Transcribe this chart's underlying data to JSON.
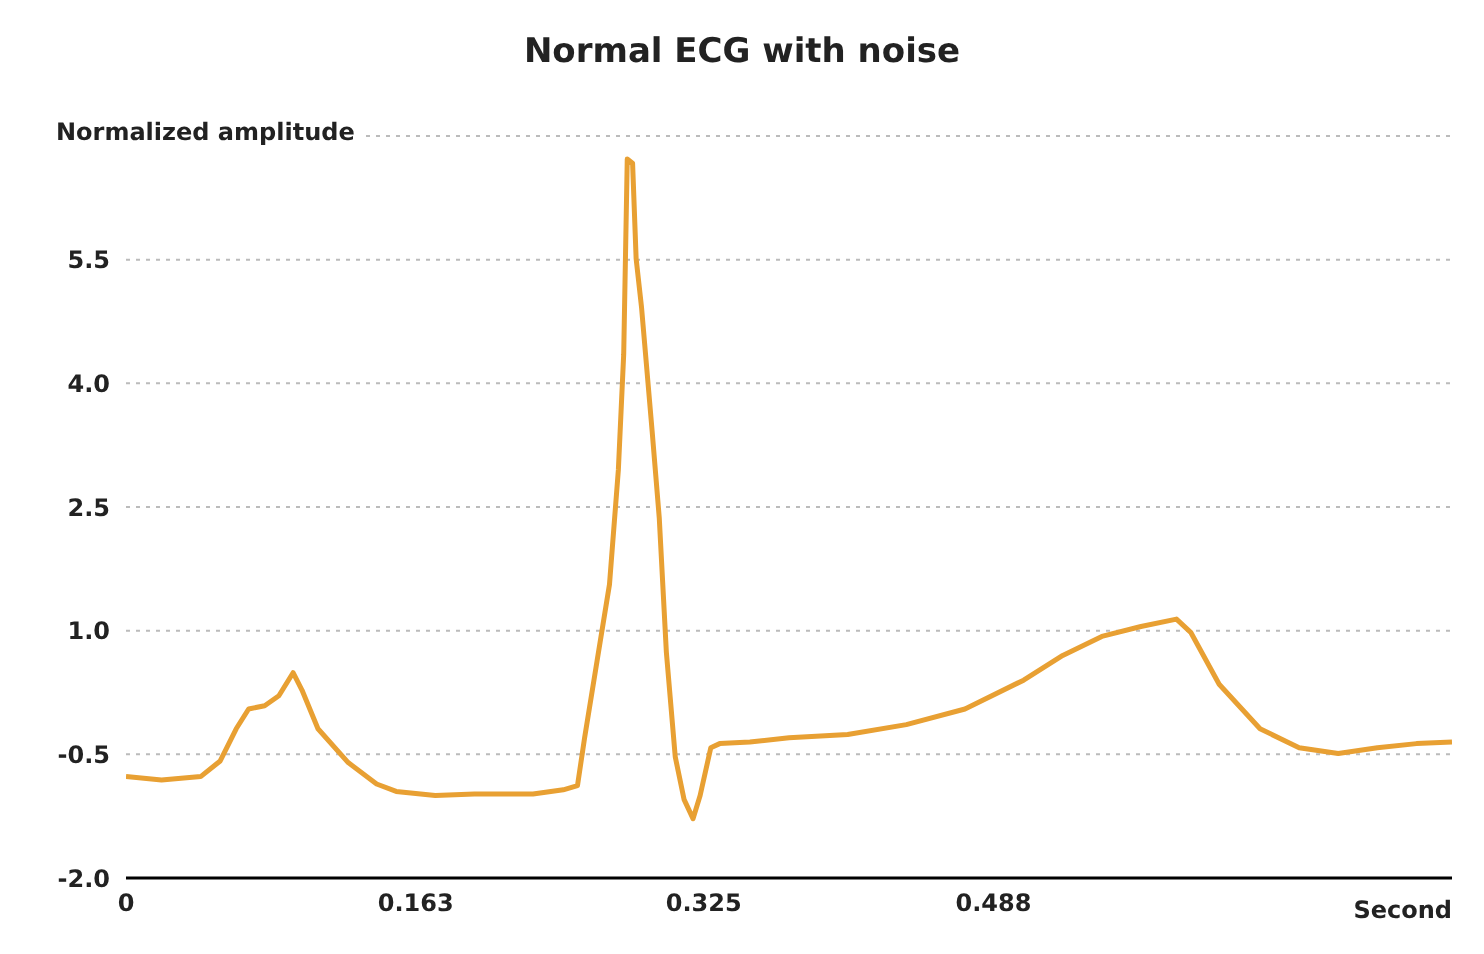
{
  "chart_data": {
    "type": "line",
    "title": "Normal ECG with noise",
    "xlabel": "Second",
    "ylabel": "Normalized amplitude",
    "x": [
      0,
      0.02,
      0.042,
      0.053,
      0.062,
      0.069,
      0.078,
      0.086,
      0.094,
      0.099,
      0.108,
      0.125,
      0.141,
      0.152,
      0.174,
      0.196,
      0.229,
      0.246,
      0.254,
      0.258,
      0.265,
      0.272,
      0.277,
      0.28,
      0.282,
      0.285,
      0.287,
      0.29,
      0.296,
      0.3,
      0.304,
      0.309,
      0.314,
      0.319,
      0.323,
      0.329,
      0.334,
      0.351,
      0.373,
      0.406,
      0.439,
      0.472,
      0.505,
      0.527,
      0.549,
      0.571,
      0.591,
      0.599,
      0.615,
      0.638,
      0.66,
      0.682,
      0.704,
      0.726,
      0.746
    ],
    "series": [
      {
        "color": "#e8a033",
        "values": [
          -0.77,
          -0.81,
          -0.77,
          -0.58,
          -0.19,
          0.05,
          0.09,
          0.21,
          0.49,
          0.28,
          -0.19,
          -0.6,
          -0.86,
          -0.95,
          -1.0,
          -0.98,
          -0.98,
          -0.93,
          -0.88,
          -0.3,
          0.63,
          1.56,
          2.95,
          4.35,
          6.72,
          6.67,
          5.51,
          4.93,
          3.42,
          2.37,
          0.74,
          -0.53,
          -1.05,
          -1.28,
          -1.0,
          -0.42,
          -0.37,
          -0.35,
          -0.3,
          -0.26,
          -0.14,
          0.05,
          0.4,
          0.7,
          0.93,
          1.05,
          1.14,
          0.98,
          0.35,
          -0.19,
          -0.42,
          -0.49,
          -0.42,
          -0.37,
          -0.35
        ]
      }
    ],
    "xlim": [
      0,
      0.746
    ],
    "xticks": [
      0,
      0.163,
      0.325,
      0.488
    ],
    "ylim": [
      -2,
      7
    ],
    "yticks": [
      {
        "value": -2,
        "label": "-2.0"
      },
      -0.5,
      {
        "value": 1,
        "label": "1.0"
      },
      2.5,
      {
        "value": 4,
        "label": "4.0"
      },
      5.5,
      {
        "value": 7,
        "label": null
      }
    ],
    "grid": "y",
    "marker": "none",
    "line_style": "solid"
  }
}
